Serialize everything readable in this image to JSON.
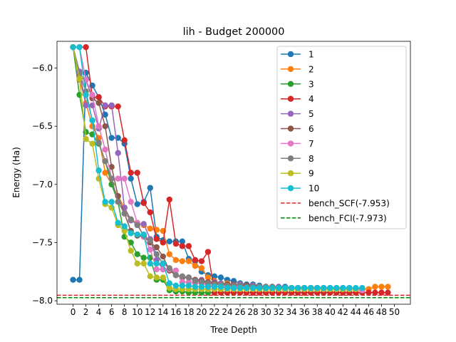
{
  "chart_data": {
    "type": "line",
    "title": "lih - Budget  200000",
    "xlabel": "Tree Depth",
    "ylabel": "Energy (Ha)",
    "xlim": [
      -2.5,
      52.5
    ],
    "ylim": [
      -8.03,
      -5.77
    ],
    "xticks": [
      0,
      2,
      4,
      6,
      8,
      10,
      12,
      14,
      16,
      18,
      20,
      22,
      24,
      26,
      28,
      30,
      32,
      34,
      36,
      38,
      40,
      42,
      44,
      46,
      48,
      50
    ],
    "yticks": [
      -6.0,
      -6.5,
      -7.0,
      -7.5,
      -8.0
    ],
    "ytick_labels": [
      "−6.0",
      "−6.5",
      "−7.0",
      "−7.5",
      "−8.0"
    ],
    "legend_position": "upper-right",
    "grid": false,
    "series": [
      {
        "name": "1",
        "color": "#1f77b4",
        "values": [
          -7.82,
          -7.82,
          -6.04,
          -6.15,
          -6.25,
          -6.4,
          -6.6,
          -6.6,
          -6.65,
          -6.95,
          -7.17,
          -7.15,
          -7.03,
          -7.45,
          -7.48,
          -7.49,
          -7.49,
          -7.49,
          -7.64,
          -7.66,
          -7.75,
          -7.78,
          -7.79,
          -7.8,
          -7.82,
          -7.83,
          -7.85,
          -7.86,
          -7.86,
          -7.87,
          -7.88,
          -7.88,
          -7.88,
          -7.88,
          -7.89,
          -7.89,
          -7.89,
          -7.89,
          -7.89,
          -7.89,
          -7.89,
          -7.89,
          -7.89,
          -7.89,
          -7.9
        ]
      },
      {
        "name": "2",
        "color": "#ff7f0e",
        "values": [
          -5.82,
          -6.1,
          -6.3,
          -6.5,
          -6.6,
          -6.9,
          -7.0,
          -7.1,
          -7.2,
          -7.3,
          -7.33,
          -7.35,
          -7.38,
          -7.39,
          -7.4,
          -7.6,
          -7.65,
          -7.66,
          -7.66,
          -7.7,
          -7.72,
          -7.8,
          -7.83,
          -7.85,
          -7.85,
          -7.86,
          -7.86,
          -7.87,
          -7.87,
          -7.88,
          -7.88,
          -7.89,
          -7.89,
          -7.89,
          -7.89,
          -7.9,
          -7.9,
          -7.9,
          -7.9,
          -7.9,
          -7.9,
          -7.9,
          -7.9,
          -7.9,
          -7.9,
          -7.9,
          -7.9,
          -7.88,
          -7.88,
          -7.88
        ]
      },
      {
        "name": "3",
        "color": "#2ca02c",
        "values": [
          -5.82,
          -6.23,
          -6.55,
          -6.57,
          -6.65,
          -6.8,
          -7.0,
          -7.15,
          -7.45,
          -7.5,
          -7.6,
          -7.63,
          -7.63,
          -7.82,
          -7.82,
          -7.91,
          -7.92,
          -7.92,
          -7.93,
          -7.93,
          -7.93,
          -7.93,
          -7.93,
          -7.93,
          -7.93,
          -7.93,
          -7.93,
          -7.93,
          -7.93,
          -7.93,
          -7.93,
          -7.93,
          -7.93,
          -7.93,
          -7.93,
          -7.93,
          -7.93,
          -7.93,
          -7.93,
          -7.93,
          -7.93,
          -7.93,
          -7.93,
          -7.93,
          -7.93
        ]
      },
      {
        "name": "4",
        "color": "#d62728",
        "values": [
          -5.82,
          -5.82,
          -5.82,
          -6.25,
          -6.25,
          -6.33,
          -6.33,
          -6.33,
          -6.62,
          -6.9,
          -6.9,
          -7.16,
          -7.24,
          -7.47,
          -7.5,
          -7.13,
          -7.51,
          -7.53,
          -7.53,
          -7.65,
          -7.66,
          -7.58,
          -7.93,
          -7.93,
          -7.93,
          -7.93,
          -7.93,
          -7.93,
          -7.93,
          -7.93,
          -7.93,
          -7.93,
          -7.93,
          -7.93,
          -7.93,
          -7.93,
          -7.93,
          -7.93,
          -7.93,
          -7.93,
          -7.93,
          -7.93,
          -7.93,
          -7.93,
          -7.93,
          -7.93,
          -7.93,
          -7.93,
          -7.93,
          -7.93
        ]
      },
      {
        "name": "5",
        "color": "#9467bd",
        "values": [
          -5.82,
          -6.03,
          -6.32,
          -6.32,
          -6.52,
          -6.32,
          -6.32,
          -6.73,
          -7.2,
          -7.31,
          -7.34,
          -7.34,
          -7.47,
          -7.65,
          -7.73,
          -7.74,
          -7.78,
          -7.8,
          -7.8,
          -7.82,
          -7.82,
          -7.84,
          -7.84,
          -7.85,
          -7.86,
          -7.86,
          -7.86,
          -7.87,
          -7.87,
          -7.88,
          -7.88,
          -7.88,
          -7.88,
          -7.89,
          -7.89,
          -7.89,
          -7.89,
          -7.89,
          -7.89,
          -7.89,
          -7.89,
          -7.9,
          -7.9,
          -7.9,
          -7.9
        ]
      },
      {
        "name": "6",
        "color": "#8c564b",
        "values": [
          -5.82,
          -6.08,
          -6.1,
          -6.26,
          -6.3,
          -6.5,
          -6.85,
          -7.1,
          -7.25,
          -7.4,
          -7.44,
          -7.45,
          -7.5,
          -7.54,
          -7.62,
          -7.74,
          -7.78,
          -7.8,
          -7.8,
          -7.82,
          -7.83,
          -7.84,
          -7.85,
          -7.86,
          -7.86,
          -7.86,
          -7.87,
          -7.87,
          -7.88,
          -7.88,
          -7.88,
          -7.88,
          -7.89,
          -7.89,
          -7.89,
          -7.89,
          -7.89,
          -7.89,
          -7.89,
          -7.9,
          -7.9,
          -7.9,
          -7.9,
          -7.9,
          -7.9
        ]
      },
      {
        "name": "7",
        "color": "#e377c2",
        "values": [
          -5.82,
          -5.82,
          -6.1,
          -6.23,
          -6.5,
          -6.7,
          -6.95,
          -6.95,
          -6.95,
          -7.15,
          -7.33,
          -7.45,
          -7.56,
          -7.73,
          -7.73,
          -7.73,
          -7.74,
          -7.84,
          -7.84,
          -7.85,
          -7.85,
          -7.87,
          -7.87,
          -7.88,
          -7.88,
          -7.88,
          -7.88,
          -7.89,
          -7.89,
          -7.89,
          -7.89,
          -7.9,
          -7.9,
          -7.9,
          -7.9,
          -7.9,
          -7.9,
          -7.9,
          -7.9,
          -7.9,
          -7.9,
          -7.9,
          -7.9,
          -7.9,
          -7.9,
          -7.91
        ]
      },
      {
        "name": "8",
        "color": "#7f7f7f",
        "values": [
          -5.82,
          -6.05,
          -6.2,
          -6.45,
          -6.64,
          -6.8,
          -6.95,
          -7.15,
          -7.25,
          -7.3,
          -7.35,
          -7.44,
          -7.48,
          -7.6,
          -7.68,
          -7.72,
          -7.78,
          -7.79,
          -7.8,
          -7.83,
          -7.84,
          -7.85,
          -7.86,
          -7.86,
          -7.87,
          -7.87,
          -7.87,
          -7.88,
          -7.88,
          -7.88,
          -7.88,
          -7.88,
          -7.89,
          -7.89,
          -7.89,
          -7.89,
          -7.89,
          -7.89,
          -7.89,
          -7.9,
          -7.9,
          -7.9,
          -7.9,
          -7.9,
          -7.9
        ]
      },
      {
        "name": "9",
        "color": "#bcbd22",
        "values": [
          -5.82,
          -6.09,
          -6.61,
          -6.65,
          -6.95,
          -7.17,
          -7.2,
          -7.35,
          -7.4,
          -7.57,
          -7.68,
          -7.68,
          -7.79,
          -7.8,
          -7.8,
          -7.89,
          -7.9,
          -7.9,
          -7.9,
          -7.9,
          -7.9,
          -7.9,
          -7.9,
          -7.9,
          -7.9,
          -7.9,
          -7.9,
          -7.9,
          -7.9,
          -7.9,
          -7.9,
          -7.9,
          -7.9,
          -7.9,
          -7.9,
          -7.9,
          -7.9,
          -7.9,
          -7.9,
          -7.9,
          -7.9,
          -7.9,
          -7.9,
          -7.9,
          -7.9
        ]
      },
      {
        "name": "10",
        "color": "#17becf",
        "values": [
          -5.82,
          -5.82,
          -6.23,
          -6.45,
          -6.88,
          -7.15,
          -7.15,
          -7.33,
          -7.36,
          -7.42,
          -7.43,
          -7.43,
          -7.68,
          -7.68,
          -7.68,
          -7.85,
          -7.87,
          -7.87,
          -7.87,
          -7.88,
          -7.88,
          -7.88,
          -7.88,
          -7.88,
          -7.89,
          -7.89,
          -7.89,
          -7.89,
          -7.89,
          -7.89,
          -7.89,
          -7.89,
          -7.89,
          -7.89,
          -7.89,
          -7.89,
          -7.89,
          -7.89,
          -7.89,
          -7.89,
          -7.89,
          -7.89,
          -7.89,
          -7.89,
          -7.89,
          -7.89
        ]
      }
    ],
    "reference_lines": [
      {
        "name": "bench_SCF(-7.953)",
        "value": -7.953,
        "color": "#d62728",
        "style": "dashed"
      },
      {
        "name": "bench_FCI(-7.973)",
        "value": -7.973,
        "color": "#008000",
        "style": "dashed"
      }
    ]
  }
}
